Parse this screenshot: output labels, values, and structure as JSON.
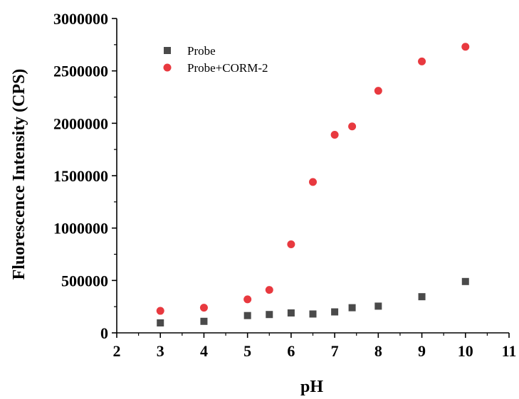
{
  "chart_data": {
    "type": "scatter",
    "title": "",
    "xlabel": "pH",
    "ylabel": "Fluorescence Intensity (CPS)",
    "xlim": [
      2,
      11
    ],
    "ylim": [
      0,
      3000000
    ],
    "xticks": [
      "2",
      "3",
      "4",
      "5",
      "6",
      "7",
      "8",
      "9",
      "10",
      "11"
    ],
    "yticks": [
      "0",
      "500000",
      "1000000",
      "1500000",
      "2000000",
      "2500000",
      "3000000"
    ],
    "grid": false,
    "legend_position": "top-left",
    "series": [
      {
        "name": "Probe",
        "marker": "square",
        "color": "#4a4a4a",
        "x": [
          3,
          4,
          5,
          5.5,
          6,
          6.5,
          7,
          7.4,
          8,
          9,
          10
        ],
        "y": [
          95000,
          110000,
          165000,
          175000,
          190000,
          180000,
          200000,
          240000,
          255000,
          345000,
          490000
        ]
      },
      {
        "name": "Probe+CORM-2",
        "marker": "circle",
        "color": "#e8393f",
        "x": [
          3,
          4,
          5,
          5.5,
          6,
          6.5,
          7,
          7.4,
          8,
          9,
          10
        ],
        "y": [
          210000,
          240000,
          320000,
          410000,
          845000,
          1440000,
          1890000,
          1970000,
          2310000,
          2590000,
          2730000
        ]
      }
    ]
  }
}
